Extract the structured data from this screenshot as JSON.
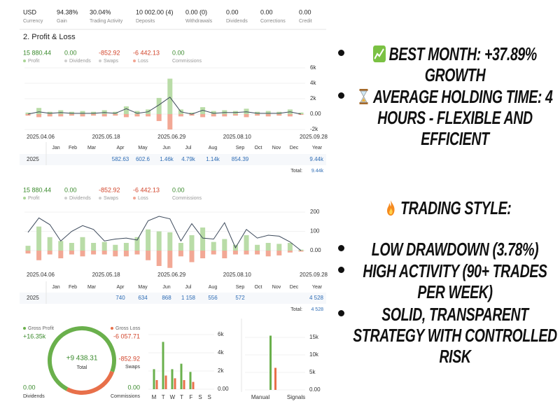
{
  "summary": [
    {
      "value": "USD",
      "label": "Currency"
    },
    {
      "value": "94.38%",
      "label": "Gain"
    },
    {
      "value": "30.04%",
      "label": "Trading Activity"
    },
    {
      "value": "10 002.00 (4)",
      "label": "Deposits"
    },
    {
      "value": "0.00 (0)",
      "label": "Withdrawals"
    },
    {
      "value": "0.00",
      "label": "Dividends"
    },
    {
      "value": "0.00",
      "label": "Corrections"
    },
    {
      "value": "0.00",
      "label": "Credit"
    }
  ],
  "section_title": "2. Profit & Loss",
  "weekly_charts": [
    {
      "legend": [
        {
          "value": "15 880.44",
          "label": "Profit",
          "color": "#3a8a2c",
          "dot": "#a9d596"
        },
        {
          "value": "0.00",
          "label": "Dividends",
          "color": "#3a8a2c",
          "dot": "#cfcfcf"
        },
        {
          "value": "-852.92",
          "label": "Swaps",
          "color": "#d2452b",
          "dot": "#cfcfcf"
        },
        {
          "value": "-6 442.13",
          "label": "Loss",
          "color": "#d2452b",
          "dot": "#f2a592"
        },
        {
          "value": "0.00",
          "label": "Commissions",
          "color": "#3a8a2c"
        }
      ],
      "categories": [
        "2025.04.06",
        null,
        null,
        null,
        null,
        null,
        "2025.05.18",
        null,
        null,
        null,
        null,
        null,
        "2025.06.29",
        null,
        null,
        null,
        null,
        null,
        "2025.08.10",
        null,
        null,
        null,
        null,
        null,
        null,
        "2025.09.28"
      ],
      "series": [
        {
          "color": "#b9dca7",
          "values": [
            0.2,
            0.8,
            0.3,
            0.5,
            0.3,
            0.4,
            0.3,
            0.5,
            0.3,
            1.0,
            0.4,
            0.6,
            2.1,
            4.6,
            0.6,
            0.2,
            0.9,
            0.4,
            0.5,
            0.4,
            0.7,
            0.3,
            0.4,
            0.3,
            0.6,
            0.2
          ]
        },
        {
          "color": "#f2a895",
          "values": [
            -0.2,
            -0.4,
            -0.3,
            -0.3,
            -0.2,
            -0.3,
            -0.2,
            -0.3,
            -0.2,
            -0.4,
            -0.3,
            -0.3,
            -0.9,
            -2.0,
            -0.3,
            -0.2,
            -0.4,
            -0.3,
            -0.3,
            -0.2,
            -0.4,
            -0.2,
            -0.3,
            -0.2,
            -0.3,
            -0.1
          ]
        }
      ],
      "line": {
        "color": "#3d4a5c",
        "values": [
          0.0,
          0.3,
          0.1,
          0.2,
          0.1,
          0.1,
          0.1,
          0.2,
          0.1,
          0.7,
          0.1,
          0.3,
          1.2,
          2.2,
          0.3,
          0.0,
          0.5,
          0.1,
          0.2,
          0.2,
          0.3,
          0.1,
          0.1,
          0.1,
          0.3,
          0.0
        ]
      },
      "ylim": [
        -2.4,
        6.4
      ],
      "yticks": [
        {
          "value": 6,
          "label": "6k"
        },
        {
          "value": 4,
          "label": "4k"
        },
        {
          "value": 2,
          "label": "2k"
        },
        {
          "value": 0,
          "label": "0.00"
        },
        {
          "value": -2,
          "label": "-2k"
        }
      ],
      "table": {
        "months": [
          "Jan",
          "Feb",
          "Mar",
          "Apr",
          "May",
          "Jun",
          "Jul",
          "Aug",
          "Sep",
          "Oct",
          "Nov",
          "Dec"
        ],
        "year_label": "Year",
        "row_label": "2025",
        "row": [
          null,
          null,
          null,
          "582.63",
          "602.6",
          "1.46k",
          "4.79k",
          "1.14k",
          "854.39",
          null,
          null,
          null
        ],
        "year_value": "9.44k",
        "total_label": "Total:",
        "total_value": "9.44k"
      }
    },
    {
      "legend": [
        {
          "value": "15 880.44",
          "label": "Profit",
          "color": "#3a8a2c",
          "dot": "#a9d596"
        },
        {
          "value": "0.00",
          "label": "Dividends",
          "color": "#3a8a2c",
          "dot": "#cfcfcf"
        },
        {
          "value": "-852.92",
          "label": "Swaps",
          "color": "#d2452b",
          "dot": "#cfcfcf"
        },
        {
          "value": "-6 442.13",
          "label": "Loss",
          "color": "#d2452b",
          "dot": "#f2a592"
        },
        {
          "value": "0.00",
          "label": "Commissions",
          "color": "#3a8a2c"
        }
      ],
      "categories": [
        "2025.04.06",
        null,
        null,
        null,
        null,
        null,
        "2025.05.18",
        null,
        null,
        null,
        null,
        null,
        "2025.06.29",
        null,
        null,
        null,
        null,
        null,
        "2025.08.10",
        null,
        null,
        null,
        null,
        null,
        null,
        "2025.09.28"
      ],
      "series": [
        {
          "color": "#b9dca7",
          "values": [
            25,
            125,
            70,
            50,
            40,
            70,
            40,
            45,
            30,
            40,
            70,
            110,
            100,
            95,
            40,
            80,
            120,
            45,
            60,
            30,
            80,
            30,
            40,
            35,
            40,
            5
          ]
        },
        {
          "color": "#f2a895",
          "values": [
            -15,
            -50,
            -20,
            -40,
            -20,
            -30,
            -20,
            -20,
            -30,
            -30,
            -20,
            -50,
            -80,
            -90,
            -30,
            -60,
            -40,
            -20,
            -40,
            -20,
            -20,
            -20,
            -30,
            -25,
            -10,
            -5
          ]
        }
      ],
      "line": {
        "color": "#3d4a5c",
        "values": [
          95,
          170,
          135,
          50,
          100,
          130,
          110,
          50,
          60,
          65,
          55,
          155,
          178,
          165,
          50,
          140,
          65,
          60,
          145,
          15,
          110,
          65,
          80,
          75,
          45,
          0
        ]
      },
      "ylim": [
        -60,
        215
      ],
      "yticks": [
        200,
        100,
        {
          "value": 0,
          "label": "0.00"
        }
      ],
      "table": {
        "months": [
          "Jan",
          "Feb",
          "Mar",
          "Apr",
          "May",
          "Jun",
          "Jul",
          "Aug",
          "Sep",
          "Oct",
          "Nov",
          "Dec"
        ],
        "year_label": "Year",
        "row_label": "2025",
        "row": [
          null,
          null,
          null,
          "740",
          "634",
          "868",
          "1 158",
          "556",
          "572",
          null,
          null,
          null
        ],
        "year_value": "4 528",
        "total_label": "Total:",
        "total_value": "4 528"
      }
    }
  ],
  "donut": {
    "gross_profit": {
      "label": "Gross Profit",
      "value": 16350,
      "value_label": "+16.35k",
      "color": "#6ab04c"
    },
    "gross_loss": {
      "label": "Gross Loss",
      "value": -6057.71,
      "value_label": "-6 057.71",
      "color": "#e8704a"
    },
    "total": {
      "value": "+9 438.31",
      "label": "Total"
    },
    "swaps": {
      "value": "-852.92",
      "label": "Swaps"
    },
    "dividends": {
      "value": "0.00",
      "label": "Dividends"
    },
    "commissions": {
      "value": "0.00",
      "label": "Commissions"
    }
  },
  "weekday_chart": {
    "categories": [
      "M",
      "T",
      "W",
      "T",
      "F",
      "S",
      "S"
    ],
    "series": [
      {
        "color": "#6ab04c",
        "values": [
          2.2,
          5.2,
          2.2,
          2.8,
          1.9,
          0,
          0
        ]
      },
      {
        "color": "#e8704a",
        "values": [
          1.0,
          1.5,
          1.2,
          1.0,
          0.8,
          0,
          0
        ]
      }
    ],
    "ylim": [
      0,
      6
    ],
    "yticks": [
      {
        "value": 6,
        "label": "6k"
      },
      {
        "value": 4,
        "label": "4k"
      },
      {
        "value": 2,
        "label": "2k"
      },
      {
        "value": 0,
        "label": "0.00"
      }
    ]
  },
  "source_chart": {
    "categories": [
      "Manual",
      "Signals"
    ],
    "series": [
      {
        "color": "#6ab04c",
        "values": [
          15.5,
          0
        ]
      },
      {
        "color": "#e8704a",
        "values": [
          6.3,
          0
        ]
      }
    ],
    "ylim": [
      0,
      15
    ],
    "yticks": [
      {
        "value": 15,
        "label": "15k"
      },
      {
        "value": 10,
        "label": "10k"
      },
      {
        "value": 5,
        "label": "5k"
      },
      {
        "value": 0,
        "label": "0.00"
      }
    ]
  },
  "highlights": {
    "items": [
      "BEST MONTH: +37.89% GROWTH",
      "AVERAGE HOLDING TIME: 4 HOURS - FLEXIBLE AND EFFICIENT"
    ],
    "style_heading": "TRADING STYLE:",
    "style_items": [
      "LOW DRAWDOWN (3.78%)",
      "HIGH ACTIVITY (90+ TRADES PER WEEK)",
      "SOLID, TRANSPARENT STRATEGY WITH CONTROLLED RISK"
    ]
  }
}
